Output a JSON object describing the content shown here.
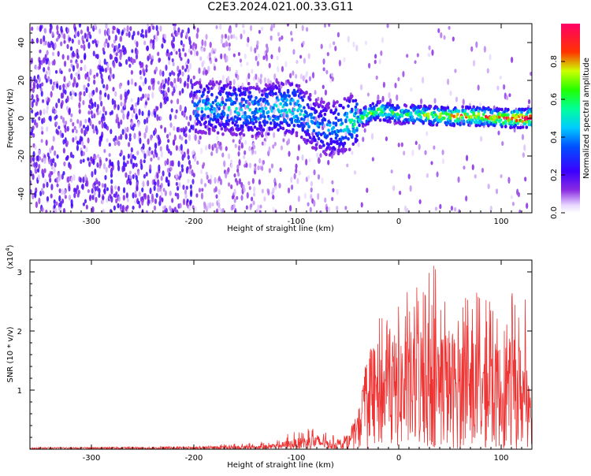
{
  "title": "C2E3.2024.021.00.33.G11",
  "colors": {
    "background": "#ffffff",
    "axis": "#000000",
    "snr_line": "#ee3333",
    "colorbar_stops": [
      "#f5f5ff",
      "#6a00ff",
      "#0000ff",
      "#00d4ff",
      "#00ff44",
      "#c8ff00",
      "#ff2200",
      "#ff0077"
    ]
  },
  "chart_data": [
    {
      "type": "heatmap",
      "xlabel": "Height of straight line (km)",
      "ylabel": "Frequency (Hz)",
      "xlim": [
        -360,
        130
      ],
      "ylim": [
        -50,
        50
      ],
      "x_ticks": [
        -300,
        -200,
        -100,
        0,
        100
      ],
      "x_tick_labels": [
        "-300",
        "-200",
        "-100",
        "0",
        "100"
      ],
      "y_ticks": [
        -40,
        -20,
        0,
        20,
        40
      ],
      "y_tick_labels": [
        "-40",
        "-20",
        "0",
        "20",
        "40"
      ],
      "grid": false,
      "colorbar": {
        "label": "Normalized spectral amplitude",
        "range": [
          0,
          1
        ],
        "ticks": [
          0.0,
          0.2,
          0.4,
          0.6,
          0.8
        ],
        "tick_labels": [
          "0.0",
          "0.2",
          "0.4",
          "0.6",
          "0.8"
        ]
      },
      "ridge": {
        "x": [
          -190,
          -160,
          -130,
          -110,
          -100,
          -90,
          -80,
          -70,
          -60,
          -50,
          -40,
          -30,
          -20,
          -10,
          0,
          20,
          40,
          60,
          80,
          100,
          120
        ],
        "freq": [
          6,
          5,
          4,
          6,
          5,
          0,
          -4,
          -6,
          -5,
          -3,
          -1,
          2,
          4,
          3,
          2,
          2,
          1,
          1,
          1,
          0,
          0
        ],
        "level": [
          0.45,
          0.5,
          0.5,
          0.55,
          0.55,
          0.45,
          0.4,
          0.45,
          0.5,
          0.55,
          0.6,
          0.65,
          0.7,
          0.65,
          0.6,
          0.7,
          0.8,
          0.85,
          0.85,
          0.9,
          1.0
        ]
      }
    },
    {
      "type": "line",
      "xlabel": "Height of straight line (km)",
      "ylabel": "SNR (10 * v/v)",
      "y_scale_label": "(x10",
      "y_scale_exp": "4",
      "y_scale_close": ")",
      "xlim": [
        -360,
        130
      ],
      "ylim": [
        0,
        3.2
      ],
      "x_ticks": [
        -300,
        -200,
        -100,
        0,
        100
      ],
      "x_tick_labels": [
        "-300",
        "-200",
        "-100",
        "0",
        "100"
      ],
      "y_ticks": [
        1,
        2,
        3
      ],
      "y_tick_labels": [
        "1",
        "2",
        "3"
      ],
      "grid": false,
      "series": [
        {
          "x": [
            -360,
            -300,
            -250,
            -200,
            -180,
            -150,
            -120,
            -110,
            -100,
            -90,
            -80,
            -70,
            -60,
            -50,
            -40,
            -30,
            -20,
            -10,
            0,
            10,
            20,
            30,
            35,
            40,
            50,
            60,
            70,
            80,
            90,
            100,
            110,
            120,
            125,
            130
          ],
          "y": [
            0.03,
            0.03,
            0.04,
            0.05,
            0.08,
            0.1,
            0.15,
            0.25,
            0.3,
            0.35,
            0.4,
            0.3,
            0.2,
            0.25,
            0.6,
            1.8,
            2.2,
            2.5,
            2.6,
            2.7,
            2.9,
            3.1,
            3.2,
            2.9,
            2.8,
            2.7,
            2.6,
            2.7,
            2.6,
            2.6,
            2.7,
            2.6,
            2.6,
            2.6
          ],
          "avg": [
            0.02,
            0.02,
            0.02,
            0.02,
            0.03,
            0.03,
            0.05,
            0.08,
            0.1,
            0.12,
            0.14,
            0.1,
            0.08,
            0.1,
            0.35,
            0.9,
            1.0,
            1.1,
            1.1,
            1.1,
            1.2,
            1.3,
            1.3,
            1.2,
            1.15,
            1.1,
            1.05,
            1.1,
            1.0,
            1.0,
            1.05,
            1.0,
            1.0,
            1.0
          ]
        }
      ]
    }
  ]
}
